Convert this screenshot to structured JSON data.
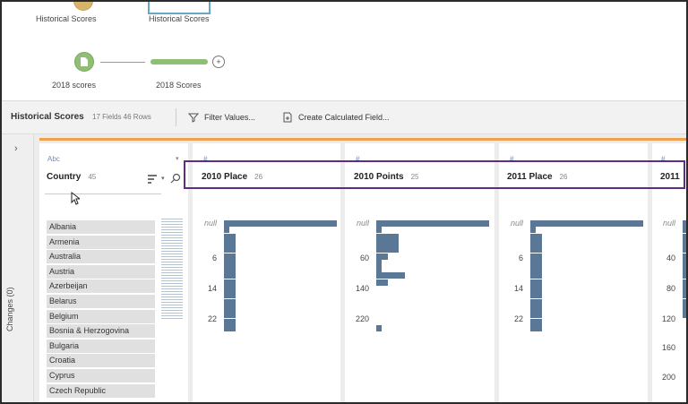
{
  "flow": {
    "top_left_label": "Historical Scores",
    "top_right_label": "Historical Scores",
    "input_label": "2018 scores",
    "step_label": "2018 Scores"
  },
  "toolbar": {
    "title": "Historical Scores",
    "meta": "17 Fields 46 Rows",
    "filter_label": "Filter Values...",
    "calc_label": "Create Calculated Field..."
  },
  "changes": {
    "label": "Changes (0)"
  },
  "columns": {
    "country": {
      "type": "Abc",
      "name": "Country",
      "count": "45"
    },
    "c2010_place": {
      "type": "#",
      "name": "2010 Place",
      "count": "26"
    },
    "c2010_points": {
      "type": "#",
      "name": "2010 Points",
      "count": "25"
    },
    "c2011_place": {
      "type": "#",
      "name": "2011 Place",
      "count": "26"
    },
    "c2011_partial": {
      "type": "#",
      "name": "2011"
    }
  },
  "countries": [
    "Albania",
    "Armenia",
    "Australia",
    "Austria",
    "Azerbeijan",
    "Belarus",
    "Belgium",
    "Bosnia & Herzogovina",
    "Bulgaria",
    "Croatia",
    "Cyprus",
    "Czech Republic"
  ],
  "axes": {
    "c2010_place": [
      "null",
      "6",
      "14",
      "22"
    ],
    "c2010_points": [
      "null",
      "60",
      "140",
      "220"
    ],
    "c2011_place": [
      "null",
      "6",
      "14",
      "22"
    ],
    "c2011_partial": [
      "null",
      "40",
      "80",
      "120",
      "160",
      "200"
    ]
  },
  "histograms": {
    "c2010_place": [
      1.0,
      0.05,
      0.1,
      0.1,
      0.1,
      0.1,
      0.1,
      0.1,
      0.1,
      0.1,
      0.1,
      0.1,
      0.1,
      0.1,
      0.1,
      0.1,
      0.1
    ],
    "c2010_points": [
      1.0,
      0.05,
      0.2,
      0.2,
      0.2,
      0.1,
      0.05,
      0.05,
      0.25,
      0.1,
      0.0,
      0.0,
      0.0,
      0.0,
      0.0,
      0.0,
      0.05
    ],
    "c2011_place": [
      1.0,
      0.05,
      0.1,
      0.1,
      0.1,
      0.1,
      0.1,
      0.1,
      0.1,
      0.1,
      0.1,
      0.1,
      0.1,
      0.1,
      0.1,
      0.1,
      0.1
    ]
  },
  "colors": {
    "bar": "#5b7796",
    "accent": "#f0a14a",
    "highlight": "#5e2c82",
    "node": "#8fbf74"
  }
}
